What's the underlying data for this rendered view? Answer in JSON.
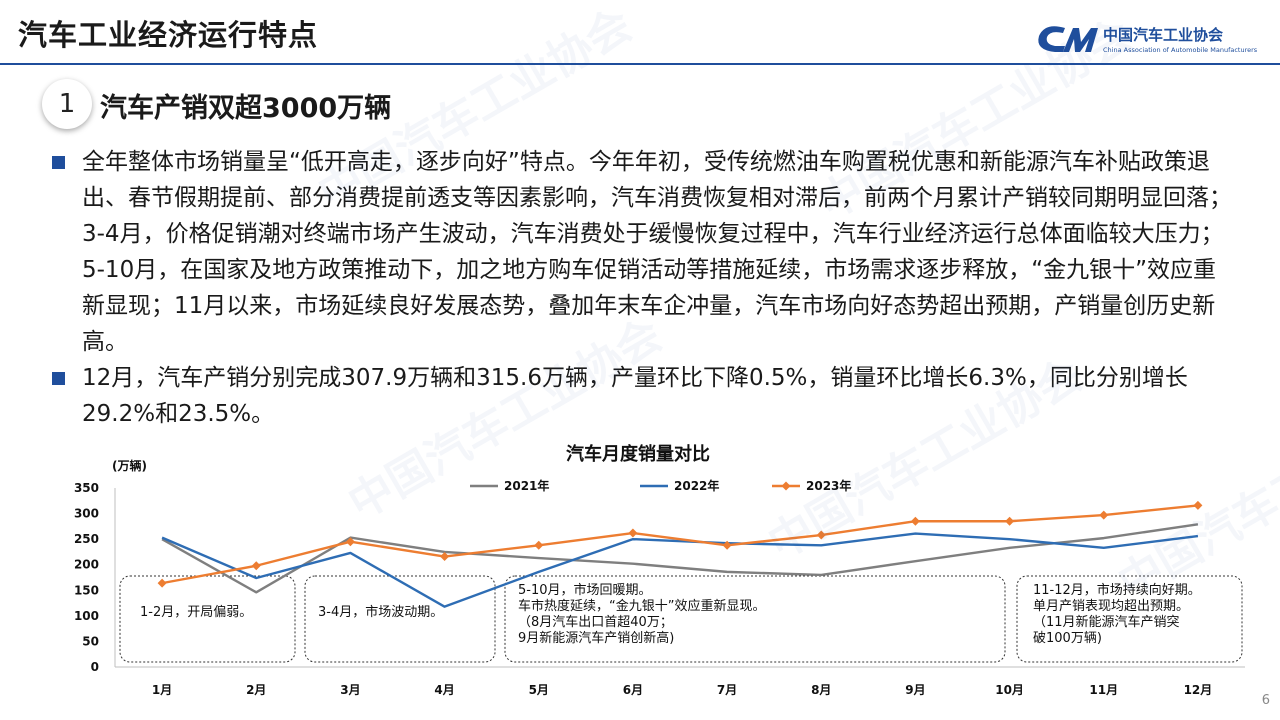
{
  "page": {
    "title": "汽车工业经济运行特点",
    "page_number": "6"
  },
  "logo": {
    "name_cn": "中国汽车工业协会",
    "name_en": "China Association of Automobile Manufacturers"
  },
  "section": {
    "number": "1",
    "title": "汽车产销双超3000万辆"
  },
  "bullets": [
    {
      "text": "全年整体市场销量呈“低开高走，逐步向好”特点。今年年初，受传统燃油车购置税优惠和新能源汽车补贴政策退出、春节假期提前、部分消费提前透支等因素影响，汽车消费恢复相对滞后，前两个月累计产销较同期明显回落；3-4月，价格促销潮对终端市场产生波动，汽车消费处于缓慢恢复过程中，汽车行业经济运行总体面临较大压力；5-10月，在国家及地方政策推动下，加之地方购车促销活动等措施延续，市场需求逐步释放，“金九银十”效应重新显现；11月以来，市场延续良好发展态势，叠加年末车企冲量，汽车市场向好态势超出预期，产销量创历史新高。"
    },
    {
      "text": "12月，汽车产销分别完成307.9万辆和315.6万辆，产量环比下降0.5%，销量环比增长6.3%，同比分别增长29.2%和23.5%。"
    }
  ],
  "chart_data": {
    "type": "line",
    "title": "汽车月度销量对比",
    "unit_label": "(万辆)",
    "categories": [
      "1月",
      "2月",
      "3月",
      "4月",
      "5月",
      "6月",
      "7月",
      "8月",
      "9月",
      "10月",
      "11月",
      "12月"
    ],
    "ylim": [
      0,
      350
    ],
    "yticks": [
      0,
      50,
      100,
      150,
      200,
      250,
      300,
      350
    ],
    "legend_position": "top",
    "series": [
      {
        "name": "2021年",
        "color": "#7f7f7f",
        "marker": "none",
        "values": [
          250,
          146,
          253,
          225,
          213,
          202,
          186,
          180,
          207,
          233,
          252,
          279
        ]
      },
      {
        "name": "2022年",
        "color": "#2e6db4",
        "marker": "none",
        "values": [
          253,
          174,
          223,
          118,
          186,
          250,
          242,
          238,
          261,
          250,
          233,
          256
        ]
      },
      {
        "name": "2023年",
        "color": "#ed7d31",
        "marker": "diamond",
        "values": [
          164,
          198,
          245,
          216,
          238,
          262,
          238,
          258,
          285,
          285,
          297,
          316
        ]
      }
    ],
    "annotations": [
      {
        "id": "early",
        "lines": [
          "1-2月，开局偏弱。"
        ]
      },
      {
        "id": "spring",
        "lines": [
          "3-4月，市场波动期。"
        ]
      },
      {
        "id": "mid",
        "lines": [
          "5-10月，市场回暖期。",
          "车市热度延续，“金九银十”效应重新显现。",
          "（8月汽车出口首超40万；",
          "9月新能源汽车产销创新高)"
        ]
      },
      {
        "id": "late",
        "lines": [
          "11-12月，市场持续向好期。",
          "单月产销表现均超出预期。",
          "（11月新能源汽车产销突",
          "破100万辆)"
        ]
      }
    ]
  }
}
